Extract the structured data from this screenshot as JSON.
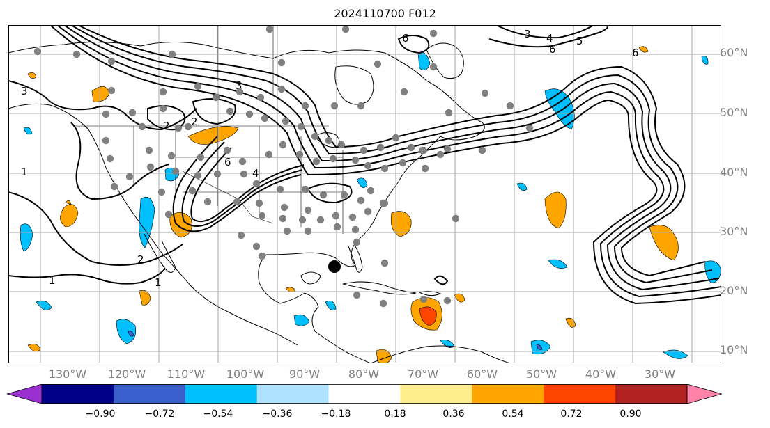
{
  "title": "2024110700 F012",
  "lat_labels": [
    "60°N",
    "50°N",
    "40°N",
    "30°N",
    "20°N",
    "10°N"
  ],
  "lon_labels": [
    "130°W",
    "120°W",
    "110°W",
    "100°W",
    "90°W",
    "80°W",
    "70°W",
    "60°W",
    "50°W",
    "40°W",
    "30°W"
  ],
  "contour_labels": [
    "1",
    "2",
    "3",
    "4",
    "5",
    "6"
  ],
  "colorbar": {
    "tick_labels": [
      "−0.90",
      "−0.72",
      "−0.54",
      "−0.36",
      "−0.18",
      "0.18",
      "0.36",
      "0.54",
      "0.72",
      "0.90"
    ],
    "colors": [
      "#9b30d0",
      "#00008b",
      "#3a5fcd",
      "#00bfff",
      "#b0e2ff",
      "#ffffff",
      "#ffec8b",
      "#ffa500",
      "#ff4500",
      "#b22222",
      "#ff82ab"
    ],
    "extend": "both"
  },
  "fill_colors": {
    "neg_light": "#00bfff",
    "neg_dark": "#3a5fcd",
    "pos_light": "#ffa500",
    "pos_dark": "#ff4500"
  },
  "marker_colors": {
    "station": "#808080",
    "storm": "#000000"
  }
}
